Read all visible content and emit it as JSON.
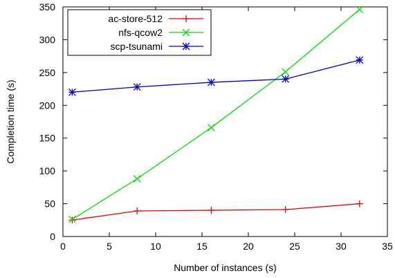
{
  "chart_data": {
    "type": "line",
    "xlabel": "Number of instances (s)",
    "ylabel": "Completion time (s)",
    "xlim": [
      0,
      35
    ],
    "ylim": [
      0,
      350
    ],
    "xticks": [
      0,
      5,
      10,
      15,
      20,
      25,
      30,
      35
    ],
    "yticks": [
      0,
      50,
      100,
      150,
      200,
      250,
      300,
      350
    ],
    "grid": false,
    "legend_position": "top-left",
    "series": [
      {
        "name": "ac-store-512",
        "color": "#ee0000",
        "marker": "plus",
        "x": [
          1,
          8,
          16,
          24,
          32
        ],
        "y": [
          25,
          39,
          40,
          41,
          50
        ]
      },
      {
        "name": "nfs-qcow2",
        "color": "#00dd00",
        "marker": "cross",
        "x": [
          1,
          8,
          16,
          24,
          32
        ],
        "y": [
          26,
          88,
          166,
          251,
          346
        ]
      },
      {
        "name": "scp-tsunami",
        "color": "#0000cc",
        "marker": "star",
        "x": [
          1,
          8,
          16,
          24,
          32
        ],
        "y": [
          220,
          228,
          235,
          240,
          269
        ]
      }
    ]
  }
}
